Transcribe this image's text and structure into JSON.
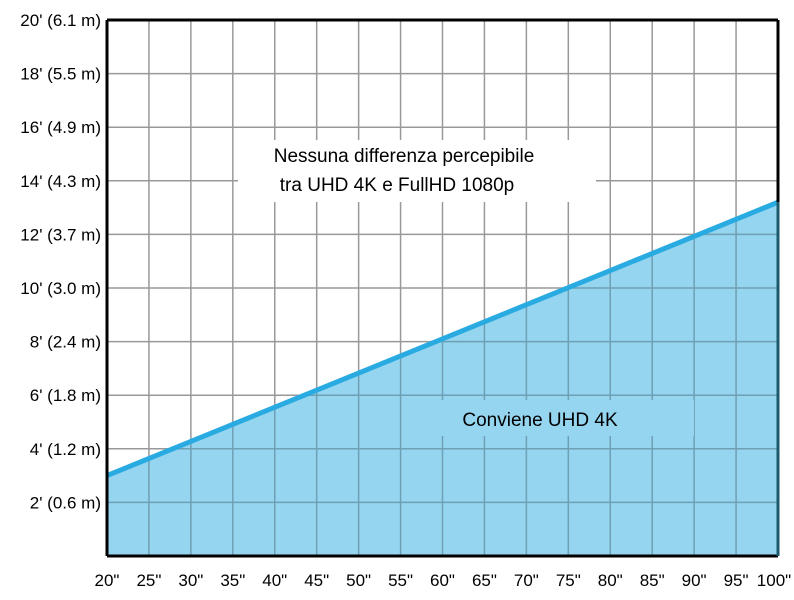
{
  "chart_data": {
    "type": "area",
    "title": "",
    "xlabel": "",
    "ylabel": "",
    "x_ticks": [
      "20\"",
      "25\"",
      "30\"",
      "35\"",
      "40\"",
      "45\"",
      "50\"",
      "55\"",
      "60\"",
      "65\"",
      "70\"",
      "75\"",
      "80\"",
      "85\"",
      "90\"",
      "95\"",
      "100\""
    ],
    "y_ticks": [
      "2' (0.6 m)",
      "4' (1.2 m)",
      "6' (1.8 m)",
      "8' (2.4 m)",
      "10' (3.0 m)",
      "12' (3.7 m)",
      "14' (4.3 m)",
      "16' (4.9 m)",
      "18' (5.5 m)",
      "20' (6.1 m)"
    ],
    "xlim": [
      20,
      100
    ],
    "ylim": [
      0,
      20
    ],
    "grid": true,
    "series": [
      {
        "x": [
          20,
          100
        ],
        "y": [
          3,
          13.2
        ]
      }
    ],
    "annotations": {
      "above_line": [
        "Nessuna differenza percepibile",
        "tra UHD 4K e FullHD 1080p"
      ],
      "below_line": "Conviene UHD 4K"
    },
    "colors": {
      "line": "#29abe2",
      "fill": "#95d5f0",
      "grid": "#999999",
      "grid_in_fill": "#6f9fb3",
      "axis": "#000000"
    }
  }
}
